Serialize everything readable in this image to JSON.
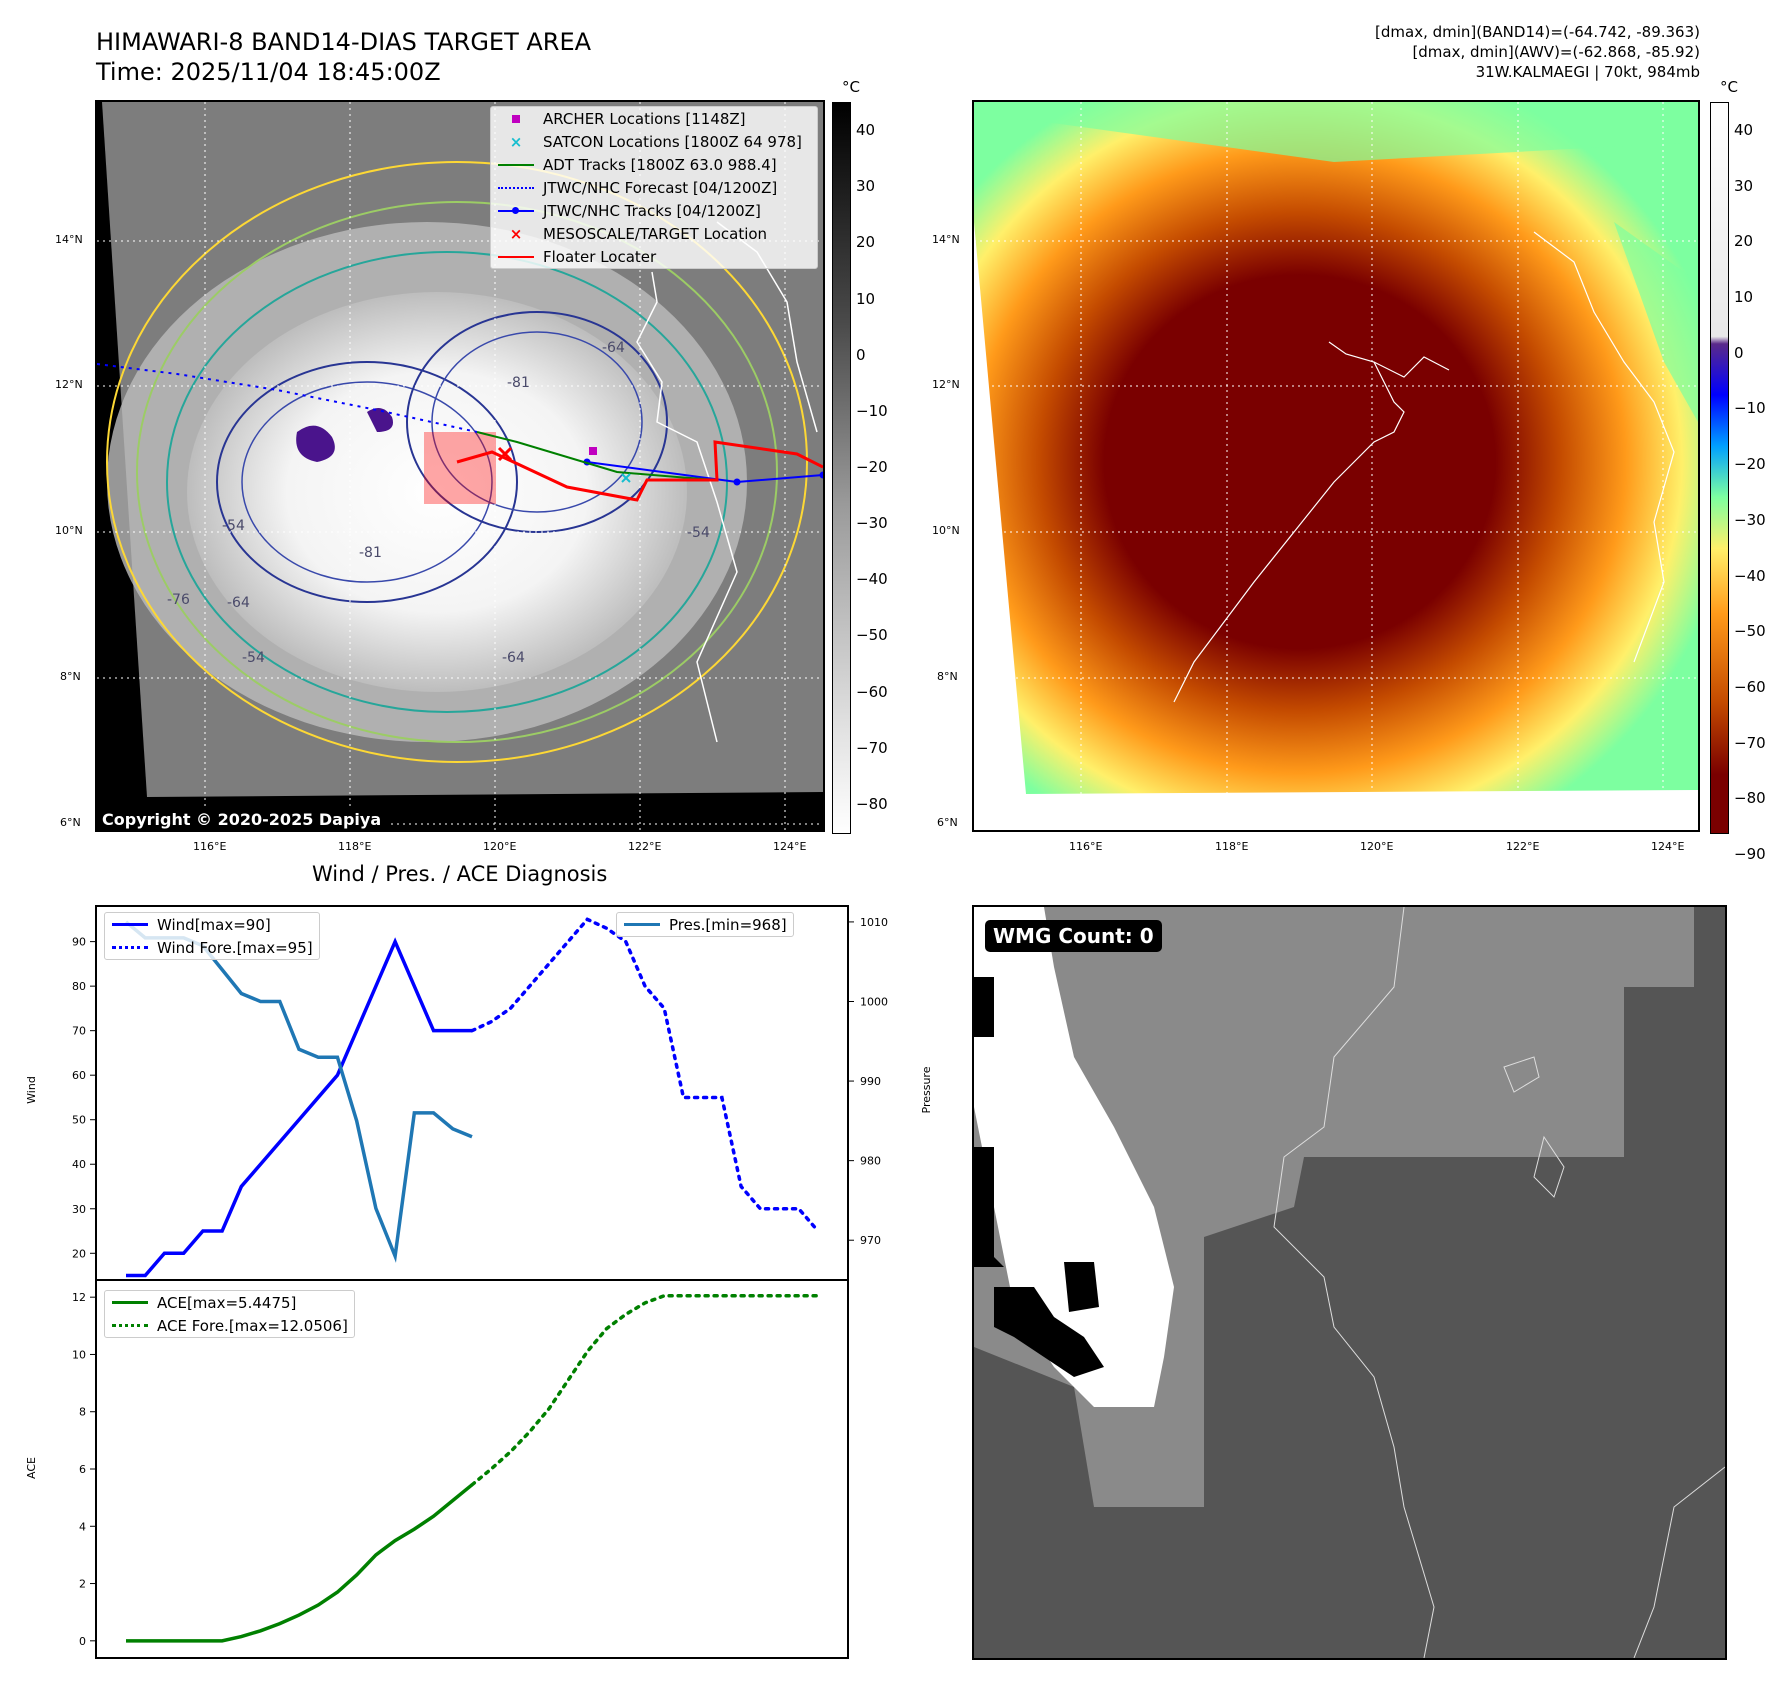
{
  "header": {
    "title_line1": "HIMAWARI-8 BAND14-DIAS TARGET AREA",
    "title_line2": "Time: 2025/11/04 18:45:00Z",
    "right_line1": "[dmax, dmin](BAND14)=(-64.742, -89.363)",
    "right_line2": "[dmax, dmin](AWV)=(-62.868, -85.92)",
    "right_line3": "31W.KALMAEGI | 70kt, 984mb"
  },
  "map_axes": {
    "lat_labels": [
      "14°N",
      "12°N",
      "10°N",
      "8°N",
      "6°N"
    ],
    "lon_labels": [
      "116°E",
      "118°E",
      "120°E",
      "122°E",
      "124°E"
    ]
  },
  "colorbar_left": {
    "unit": "°C",
    "ticks": [
      "40",
      "30",
      "20",
      "10",
      "0",
      "−10",
      "−20",
      "−30",
      "−40",
      "−50",
      "−60",
      "−70",
      "−80"
    ]
  },
  "colorbar_right": {
    "unit": "°C",
    "ticks": [
      "40",
      "30",
      "20",
      "10",
      "0",
      "−10",
      "−20",
      "−30",
      "−40",
      "−50",
      "−60",
      "−70",
      "−80",
      "−90"
    ]
  },
  "map_legend": [
    {
      "label": "ARCHER Locations [1148Z]",
      "marker": "square",
      "color": "#c000c0"
    },
    {
      "label": "SATCON Locations [1800Z 64 978]",
      "marker": "x",
      "color": "#17becf"
    },
    {
      "label": "ADT Tracks [1800Z 63.0 988.4]",
      "marker": "line",
      "color": "#008000"
    },
    {
      "label": "JTWC/NHC Forecast [04/1200Z]",
      "marker": "dotted",
      "color": "#0000ff"
    },
    {
      "label": "JTWC/NHC Tracks [04/1200Z]",
      "marker": "dotline",
      "color": "#0000ff"
    },
    {
      "label": "MESOSCALE/TARGET Location",
      "marker": "x",
      "color": "#ff0000"
    },
    {
      "label": "Floater Locater",
      "marker": "line",
      "color": "#ff0000"
    }
  ],
  "contour_labels": [
    "-54",
    "-64",
    "-81",
    "-76",
    "-54",
    "-64",
    "-54",
    "-81",
    "-64"
  ],
  "copyright": "Copyright © 2020-2025 Dapiya",
  "wmg_label": "WMG Count: 0",
  "diag_title": "Wind / Pres. / ACE Diagnosis",
  "chart_data": [
    {
      "type": "line",
      "title": "Wind / Pres. / ACE Diagnosis",
      "ylabel": "Wind",
      "ylabel_right": "Pressure",
      "x": [
        0,
        1,
        2,
        3,
        4,
        5,
        6,
        7,
        8,
        9,
        10,
        11,
        12,
        13,
        14,
        15,
        16,
        17,
        18,
        19,
        20,
        21,
        22,
        23,
        24,
        25,
        26,
        27,
        28,
        29,
        30,
        31,
        32,
        33,
        34,
        35,
        36
      ],
      "ylim": [
        14,
        98
      ],
      "ylim_right": [
        965,
        1012
      ],
      "yticks": [
        20,
        30,
        40,
        50,
        60,
        70,
        80,
        90
      ],
      "yticks_right": [
        970,
        980,
        990,
        1000,
        1010
      ],
      "series": [
        {
          "name": "Wind[max=90]",
          "axis": "left",
          "color": "#0000ff",
          "style": "solid",
          "points": [
            [
              0,
              15
            ],
            [
              1,
              15
            ],
            [
              2,
              20
            ],
            [
              3,
              20
            ],
            [
              4,
              25
            ],
            [
              5,
              25
            ],
            [
              6,
              35
            ],
            [
              7,
              40
            ],
            [
              8,
              45
            ],
            [
              9,
              50
            ],
            [
              10,
              55
            ],
            [
              11,
              60
            ],
            [
              12,
              70
            ],
            [
              13,
              80
            ],
            [
              14,
              90
            ],
            [
              15,
              80
            ],
            [
              16,
              70
            ],
            [
              17,
              70
            ],
            [
              18,
              70
            ]
          ]
        },
        {
          "name": "Wind Fore.[max=95]",
          "axis": "left",
          "color": "#0000ff",
          "style": "dotted",
          "points": [
            [
              18,
              70
            ],
            [
              19,
              72
            ],
            [
              20,
              75
            ],
            [
              21,
              80
            ],
            [
              22,
              85
            ],
            [
              23,
              90
            ],
            [
              24,
              95
            ],
            [
              25,
              93
            ],
            [
              26,
              90
            ],
            [
              27,
              80
            ],
            [
              28,
              75
            ],
            [
              29,
              55
            ],
            [
              30,
              55
            ],
            [
              31,
              55
            ],
            [
              32,
              35
            ],
            [
              33,
              30
            ],
            [
              34,
              30
            ],
            [
              35,
              30
            ],
            [
              36,
              25
            ]
          ]
        },
        {
          "name": "Pres.[min=968]",
          "axis": "right",
          "color": "#1f77b4",
          "style": "solid",
          "points": [
            [
              0,
              1010
            ],
            [
              1,
              1008
            ],
            [
              2,
              1008
            ],
            [
              3,
              1008
            ],
            [
              4,
              1007
            ],
            [
              5,
              1004
            ],
            [
              6,
              1001
            ],
            [
              7,
              1000
            ],
            [
              8,
              1000
            ],
            [
              9,
              994
            ],
            [
              10,
              993
            ],
            [
              11,
              993
            ],
            [
              12,
              985
            ],
            [
              13,
              974
            ],
            [
              14,
              968
            ],
            [
              15,
              986
            ],
            [
              16,
              986
            ],
            [
              17,
              984
            ],
            [
              18,
              983
            ]
          ]
        }
      ]
    },
    {
      "type": "line",
      "ylabel": "ACE",
      "x": [
        0,
        1,
        2,
        3,
        4,
        5,
        6,
        7,
        8,
        9,
        10,
        11,
        12,
        13,
        14,
        15,
        16,
        17,
        18,
        19,
        20,
        21,
        22,
        23,
        24,
        25,
        26,
        27,
        28,
        29,
        30,
        31,
        32,
        33,
        34,
        35,
        36
      ],
      "ylim": [
        -0.6,
        12.6
      ],
      "yticks": [
        0,
        2,
        4,
        6,
        8,
        10,
        12
      ],
      "series": [
        {
          "name": "ACE[max=5.4475]",
          "color": "#008000",
          "style": "solid",
          "points": [
            [
              0,
              0
            ],
            [
              1,
              0
            ],
            [
              2,
              0
            ],
            [
              3,
              0
            ],
            [
              4,
              0
            ],
            [
              5,
              0
            ],
            [
              6,
              0.15
            ],
            [
              7,
              0.35
            ],
            [
              8,
              0.6
            ],
            [
              9,
              0.9
            ],
            [
              10,
              1.25
            ],
            [
              11,
              1.7
            ],
            [
              12,
              2.3
            ],
            [
              13,
              3.0
            ],
            [
              14,
              3.5
            ],
            [
              15,
              3.9
            ],
            [
              16,
              4.35
            ],
            [
              17,
              4.9
            ],
            [
              18,
              5.4475
            ]
          ]
        },
        {
          "name": "ACE Fore.[max=12.0506]",
          "color": "#008000",
          "style": "dotted",
          "points": [
            [
              18,
              5.4475
            ],
            [
              19,
              6.0
            ],
            [
              20,
              6.6
            ],
            [
              21,
              7.3
            ],
            [
              22,
              8.1
            ],
            [
              23,
              9.1
            ],
            [
              24,
              10.1
            ],
            [
              25,
              10.9
            ],
            [
              26,
              11.4
            ],
            [
              27,
              11.8
            ],
            [
              28,
              12.05
            ],
            [
              29,
              12.05
            ],
            [
              30,
              12.05
            ],
            [
              31,
              12.05
            ],
            [
              32,
              12.05
            ],
            [
              33,
              12.05
            ],
            [
              34,
              12.05
            ],
            [
              35,
              12.05
            ],
            [
              36,
              12.05
            ]
          ]
        }
      ]
    }
  ],
  "colors": {
    "wind": "#0000ff",
    "pressure": "#1f77b4",
    "ace": "#008000",
    "floater": "#ff0000"
  }
}
